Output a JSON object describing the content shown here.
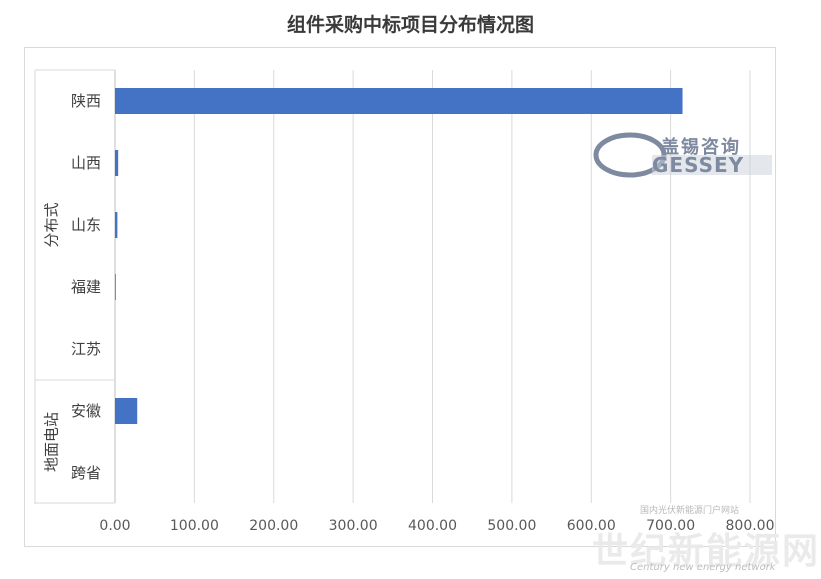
{
  "chart_data": {
    "type": "bar",
    "orientation": "horizontal",
    "title": "组件采购中标项目分布情况图",
    "groups": [
      {
        "name": "分布式",
        "categories": [
          "陕西",
          "山西",
          "山东",
          "福建",
          "江苏"
        ]
      },
      {
        "name": "地面电站",
        "categories": [
          "安徽",
          "跨省"
        ]
      }
    ],
    "categories": [
      "陕西",
      "山西",
      "山东",
      "福建",
      "江苏",
      "安徽",
      "跨省"
    ],
    "values": [
      715,
      4,
      3,
      1,
      0,
      28,
      0
    ],
    "xlim": [
      0,
      800
    ],
    "xticks": [
      "0.00",
      "100.00",
      "200.00",
      "300.00",
      "400.00",
      "500.00",
      "600.00",
      "700.00",
      "800.00"
    ],
    "grid": true,
    "bar_color": "#4472c4"
  },
  "watermarks": {
    "logo_cn": "盖锡咨询",
    "logo_en": "GESSEY",
    "site_small": "国内光伏新能源门户网站",
    "site_big": "世纪新能源网",
    "site_en": "Century new energy network"
  }
}
